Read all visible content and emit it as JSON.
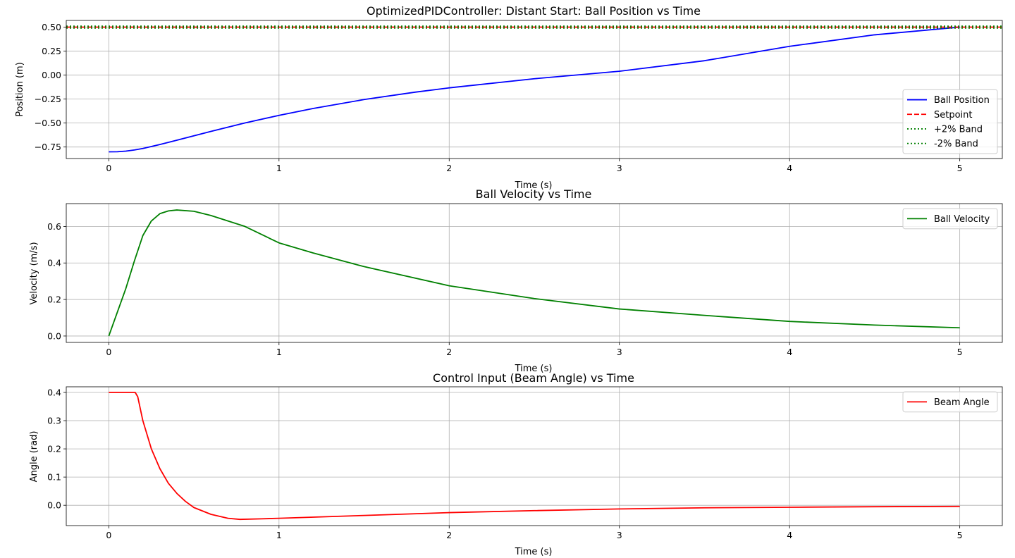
{
  "chart_data": [
    {
      "type": "line",
      "title": "OptimizedPIDController: Distant Start: Ball Position vs Time",
      "xlabel": "Time (s)",
      "ylabel": "Position (m)",
      "xlim": [
        -0.25,
        5.25
      ],
      "ylim": [
        -0.87,
        0.57
      ],
      "xticks": [
        0,
        1,
        2,
        3,
        4,
        5
      ],
      "xtick_labels": [
        "0",
        "1",
        "2",
        "3",
        "4",
        "5"
      ],
      "yticks": [
        -0.75,
        -0.5,
        -0.25,
        0.0,
        0.25,
        0.5
      ],
      "ytick_labels": [
        "−0.75",
        "−0.50",
        "−0.25",
        "0.00",
        "0.25",
        "0.50"
      ],
      "grid": true,
      "legend_position": "lower-right",
      "series": [
        {
          "name": "Ball Position",
          "color": "#0000ff",
          "style": "solid",
          "x": [
            0,
            0.05,
            0.1,
            0.15,
            0.2,
            0.3,
            0.4,
            0.5,
            0.6,
            0.8,
            1.0,
            1.2,
            1.5,
            1.8,
            2.0,
            2.5,
            3.0,
            3.5,
            4.0,
            4.5,
            5.0
          ],
          "y": [
            -0.8,
            -0.799,
            -0.793,
            -0.781,
            -0.765,
            -0.724,
            -0.679,
            -0.633,
            -0.587,
            -0.499,
            -0.42,
            -0.348,
            -0.255,
            -0.178,
            -0.133,
            -0.038,
            0.04,
            0.15,
            0.3,
            0.42,
            0.5
          ]
        },
        {
          "name": "Setpoint",
          "color": "#ff0000",
          "style": "dashed",
          "x": [
            -0.25,
            5.25
          ],
          "y": [
            0.5,
            0.5
          ]
        },
        {
          "name": "+2% Band",
          "color": "#008000",
          "style": "dotted",
          "x": [
            -0.25,
            5.25
          ],
          "y": [
            0.51,
            0.51
          ]
        },
        {
          "name": "-2% Band",
          "color": "#008000",
          "style": "dotted",
          "x": [
            -0.25,
            5.25
          ],
          "y": [
            0.49,
            0.49
          ]
        }
      ]
    },
    {
      "type": "line",
      "title": "Ball Velocity vs Time",
      "xlabel": "Time (s)",
      "ylabel": "Velocity (m/s)",
      "xlim": [
        -0.25,
        5.25
      ],
      "ylim": [
        -0.035,
        0.725
      ],
      "xticks": [
        0,
        1,
        2,
        3,
        4,
        5
      ],
      "xtick_labels": [
        "0",
        "1",
        "2",
        "3",
        "4",
        "5"
      ],
      "yticks": [
        0.0,
        0.2,
        0.4,
        0.6
      ],
      "ytick_labels": [
        "0.0",
        "0.2",
        "0.4",
        "0.6"
      ],
      "grid": true,
      "legend_position": "top-right",
      "series": [
        {
          "name": "Ball Velocity",
          "color": "#008000",
          "style": "solid",
          "x": [
            0,
            0.05,
            0.1,
            0.15,
            0.2,
            0.25,
            0.3,
            0.35,
            0.4,
            0.5,
            0.6,
            0.7,
            0.8,
            1.0,
            1.2,
            1.5,
            2.0,
            2.5,
            3.0,
            3.5,
            4.0,
            4.5,
            5.0
          ],
          "y": [
            0.0,
            0.13,
            0.26,
            0.41,
            0.55,
            0.63,
            0.67,
            0.685,
            0.69,
            0.683,
            0.66,
            0.63,
            0.6,
            0.51,
            0.455,
            0.38,
            0.275,
            0.205,
            0.148,
            0.113,
            0.08,
            0.06,
            0.045
          ]
        }
      ]
    },
    {
      "type": "line",
      "title": "Control Input (Beam Angle) vs Time",
      "xlabel": "Time (s)",
      "ylabel": "Angle (rad)",
      "xlim": [
        -0.25,
        5.25
      ],
      "ylim": [
        -0.072,
        0.42
      ],
      "xticks": [
        0,
        1,
        2,
        3,
        4,
        5
      ],
      "xtick_labels": [
        "0",
        "1",
        "2",
        "3",
        "4",
        "5"
      ],
      "yticks": [
        0.0,
        0.1,
        0.2,
        0.3,
        0.4
      ],
      "ytick_labels": [
        "0.0",
        "0.1",
        "0.2",
        "0.3",
        "0.4"
      ],
      "grid": true,
      "legend_position": "top-right",
      "series": [
        {
          "name": "Beam Angle",
          "color": "#ff0000",
          "style": "solid",
          "x": [
            0,
            0.1,
            0.155,
            0.17,
            0.2,
            0.25,
            0.3,
            0.35,
            0.4,
            0.45,
            0.5,
            0.6,
            0.7,
            0.77,
            0.9,
            1.0,
            1.5,
            2.0,
            2.5,
            3.0,
            3.5,
            4.0,
            4.5,
            5.0
          ],
          "y": [
            0.4,
            0.4,
            0.4,
            0.385,
            0.3,
            0.2,
            0.13,
            0.078,
            0.042,
            0.014,
            -0.008,
            -0.032,
            -0.046,
            -0.05,
            -0.048,
            -0.046,
            -0.036,
            -0.026,
            -0.019,
            -0.013,
            -0.009,
            -0.007,
            -0.005,
            -0.004
          ]
        }
      ]
    }
  ]
}
